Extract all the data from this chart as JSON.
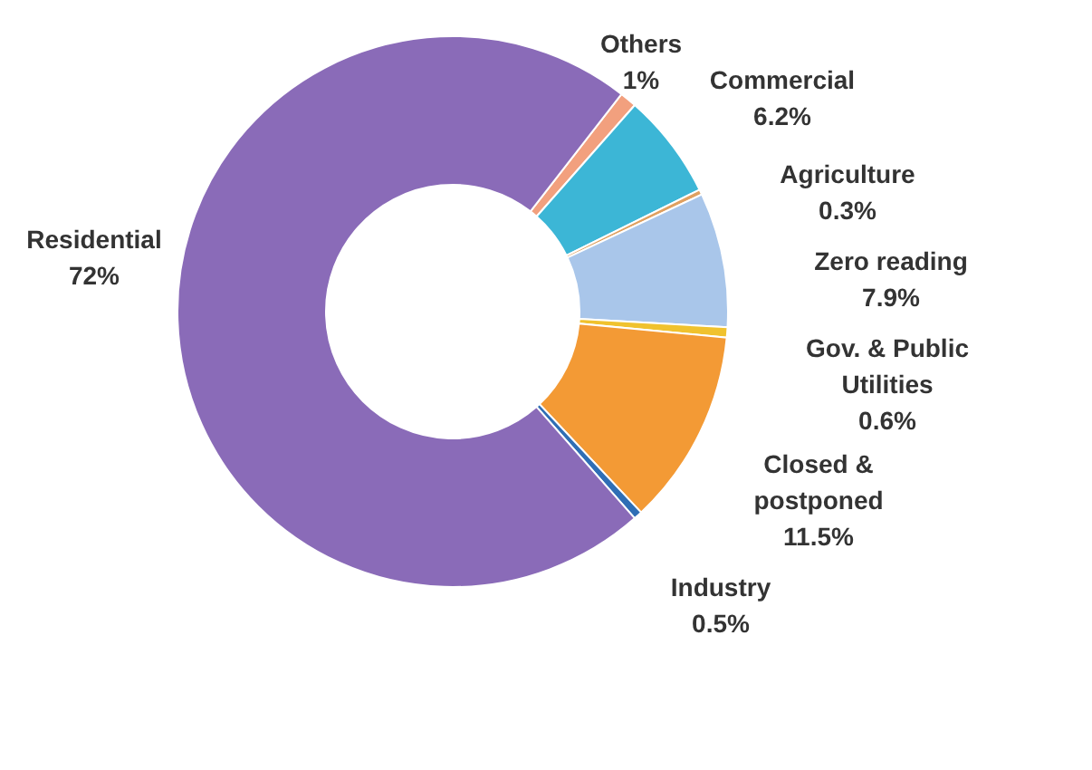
{
  "chart_data": {
    "type": "donut",
    "categories": [
      "Others",
      "Commercial",
      "Agriculture",
      "Zero reading",
      "Gov. & Public Utilities",
      "Closed & postponed",
      "Industry",
      "Residential"
    ],
    "values": [
      1,
      6.2,
      0.3,
      7.9,
      0.6,
      11.5,
      0.5,
      72
    ],
    "value_labels": [
      "1%",
      "6.2%",
      "0.3%",
      "7.9%",
      "0.6%",
      "11.5%",
      "0.5%",
      "72%"
    ],
    "colors": [
      "#f2a07e",
      "#3cb6d6",
      "#e0a060",
      "#a9c6ea",
      "#f0c22e",
      "#f39a35",
      "#2f6eb5",
      "#8a6bb8"
    ]
  }
}
